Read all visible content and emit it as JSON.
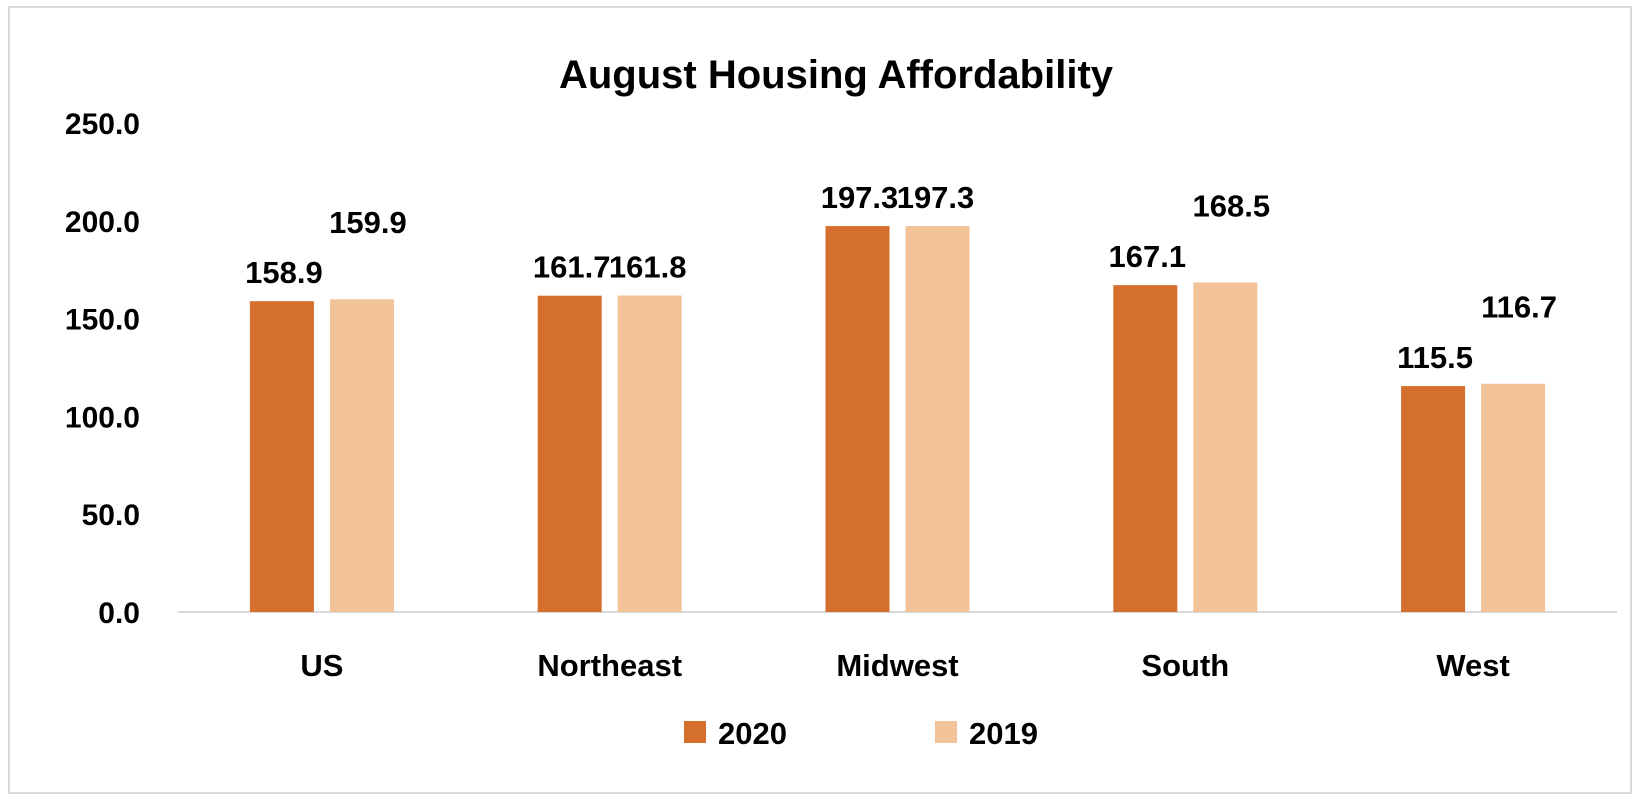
{
  "chart_data": {
    "type": "bar",
    "title": "August Housing Affordability",
    "xlabel": "",
    "ylabel": "",
    "categories": [
      "US",
      "Northeast",
      "Midwest",
      "South",
      "West"
    ],
    "series": [
      {
        "name": "2020",
        "values": [
          158.9,
          161.7,
          197.3,
          167.1,
          115.5
        ],
        "color": "#D46F2D"
      },
      {
        "name": "2019",
        "values": [
          159.9,
          161.8,
          197.3,
          168.5,
          116.7
        ],
        "color": "#F2C298"
      }
    ],
    "value_labels": [
      [
        "158.9",
        "161.7",
        "197.3",
        "167.1",
        "115.5"
      ],
      [
        "159.9",
        "161.8",
        "197.3",
        "168.5",
        "116.7"
      ]
    ],
    "ylim": [
      0,
      250
    ],
    "yticks": [
      "0.0",
      "50.0",
      "100.0",
      "150.0",
      "200.0",
      "250.0"
    ],
    "grid": false,
    "legend": "bottom-center"
  }
}
